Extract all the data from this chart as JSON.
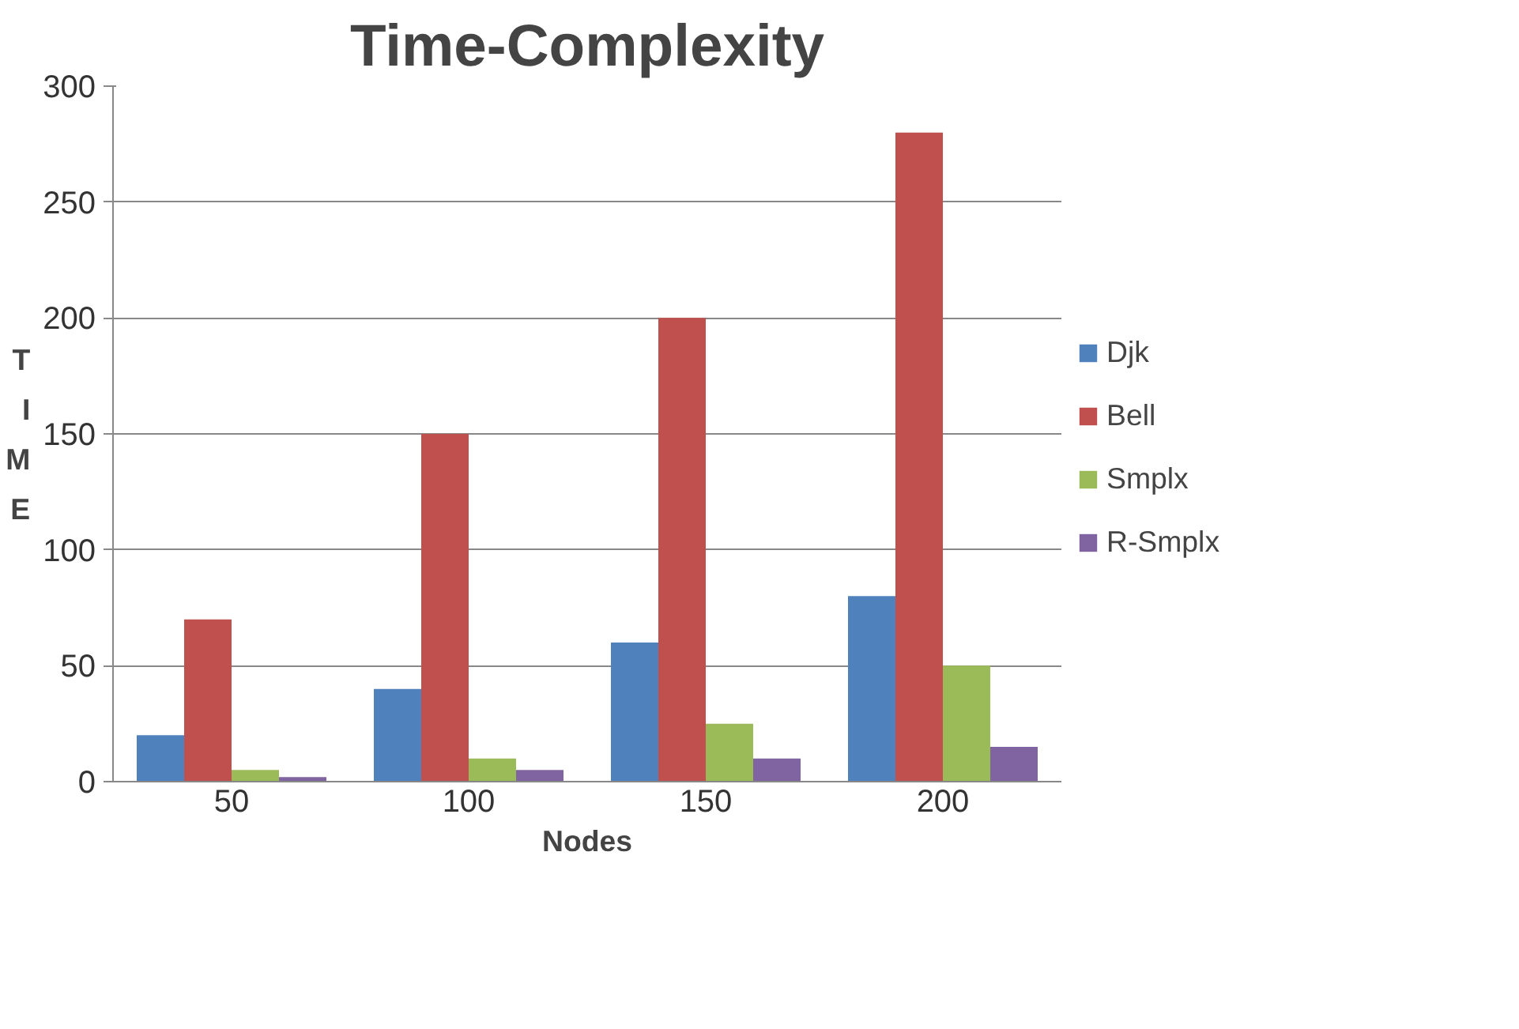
{
  "chart_data": {
    "type": "bar",
    "title": "Time-Complexity",
    "xlabel": "Nodes",
    "ylabel": "TIME",
    "categories": [
      "50",
      "100",
      "150",
      "200"
    ],
    "series": [
      {
        "name": "Djk",
        "color": "#4f81bd",
        "values": [
          20,
          40,
          60,
          80
        ]
      },
      {
        "name": "Bell",
        "color": "#c0504d",
        "values": [
          70,
          150,
          200,
          280
        ]
      },
      {
        "name": "Smplx",
        "color": "#9bbb59",
        "values": [
          5,
          10,
          25,
          50
        ]
      },
      {
        "name": "R-Smplx",
        "color": "#8064a2",
        "values": [
          2,
          5,
          10,
          15
        ]
      }
    ],
    "ylim": [
      0,
      300
    ],
    "yticks": [
      0,
      50,
      100,
      150,
      200,
      250,
      300
    ],
    "grid": "y",
    "legend": "right"
  }
}
